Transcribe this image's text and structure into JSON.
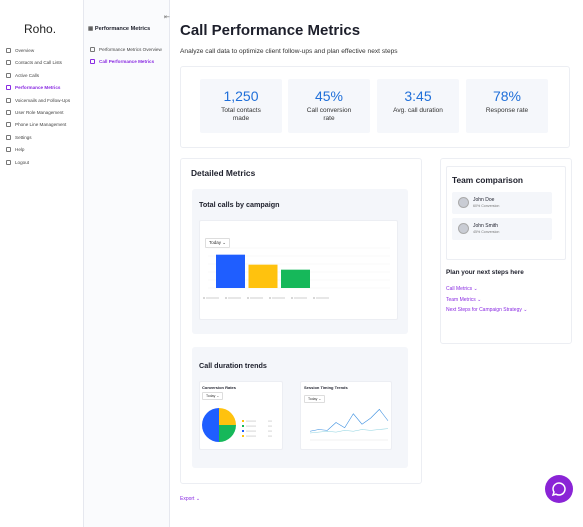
{
  "sidebar": {
    "logo": "Roho.",
    "items": [
      "Overview",
      "Contacts and Call Lists",
      "Active Calls",
      "Performance Metrics",
      "Voicemails and Follow-Ups",
      "User Role Management",
      "Phone Line Management",
      "Settings",
      "Help",
      "Logout"
    ],
    "active": 3
  },
  "subnav": {
    "title": "Performance Metrics",
    "items": [
      "Performance Metrics Overview",
      "Call Performance Metrics"
    ],
    "active": 1
  },
  "header": {
    "title": "Call Performance Metrics",
    "subtitle": "Analyze call data to optimize client follow-ups and plan effective next steps"
  },
  "stats": [
    {
      "value": "1,250",
      "label": "Total contacts made"
    },
    {
      "value": "45%",
      "label": "Call conversion rate"
    },
    {
      "value": "3:45",
      "label": "Avg. call duration"
    },
    {
      "value": "78%",
      "label": "Response rate"
    }
  ],
  "detailed": {
    "title": "Detailed Metrics",
    "campaign": {
      "title": "Total calls by campaign",
      "filter": "Today",
      "chart_data": {
        "type": "bar",
        "values": [
          100,
          70,
          55
        ],
        "colors": [
          "#1f5eff",
          "#ffc20e",
          "#16b85a"
        ],
        "ylim": [
          0,
          120
        ]
      }
    },
    "duration": {
      "title": "Call duration trends",
      "conversion": {
        "title": "Conversion Rates",
        "filter": "Today",
        "chart_data": {
          "type": "pie",
          "values": [
            25,
            25,
            50
          ],
          "colors": [
            "#ffc20e",
            "#16b85a",
            "#1f5eff"
          ]
        }
      },
      "timing": {
        "title": "Session Timing Trends",
        "filter": "Today",
        "chart_data": {
          "type": "line",
          "ylim": [
            0,
            40
          ],
          "series": [
            {
              "color": "#8fd3e0",
              "values": [
                8,
                9,
                10,
                9,
                11,
                10,
                12,
                11,
                12,
                13
              ]
            },
            {
              "color": "#3b8fe0",
              "values": [
                10,
                12,
                11,
                20,
                14,
                30,
                18,
                25,
                35,
                22
              ]
            }
          ]
        }
      }
    }
  },
  "team": {
    "title": "Team comparison",
    "members": [
      {
        "name": "John Doe",
        "stat": "60% Conversion"
      },
      {
        "name": "John Smith",
        "stat": "45% Conversion"
      }
    ]
  },
  "next_steps": {
    "title": "Plan your next steps here",
    "links": [
      "Call Metrics",
      "Team Metrics",
      "Next Steps for Campaign Strategy"
    ]
  },
  "export": "Export"
}
